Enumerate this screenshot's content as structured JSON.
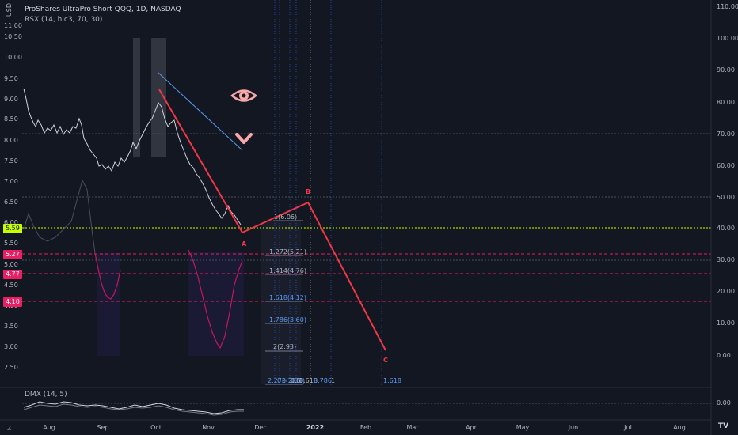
{
  "header": {
    "title": "ProShares UltraPro Short QQQ, 1D, NASDAQ",
    "indicator_rsx": "RSX (14, hlc3, 70, 30)",
    "indicator_dmx": "DMX (14, 5)"
  },
  "left_axis": {
    "unit": "USD",
    "top_label": "11.00",
    "ticks": [
      "10.50",
      "10.00",
      "9.50",
      "9.00",
      "8.50",
      "8.00",
      "7.50",
      "7.00",
      "6.50",
      "6.00",
      "5.50",
      "5.00",
      "4.50",
      "4.00",
      "3.50",
      "3.00",
      "2.50"
    ]
  },
  "right_axis": {
    "ticks": [
      "110.00",
      "100.00",
      "90.00",
      "80.00",
      "70.00",
      "60.00",
      "50.00",
      "40.00",
      "30.00",
      "20.00",
      "10.00",
      "0.00"
    ],
    "dmx_tick": "0.00"
  },
  "x_axis": {
    "labels": [
      "Aug",
      "Sep",
      "Oct",
      "Nov",
      "Dec",
      "2022",
      "Feb",
      "Mar",
      "Apr",
      "May",
      "Jun",
      "Jul",
      "Aug"
    ]
  },
  "price_badges": {
    "current": {
      "text": "5.59",
      "color": "#c6ff00"
    },
    "b1": {
      "text": "5.27",
      "color": "#e91e63"
    },
    "b2": {
      "text": "4.77",
      "color": "#e91e63"
    },
    "b3": {
      "text": "4.10",
      "color": "#e91e63"
    }
  },
  "fib_levels": {
    "l1": "1(6.06)",
    "l2": "1.272(5.21)",
    "l3": "1.414(4.76)",
    "l4": "1.618(4.12)",
    "l5": "1.786(3.60)",
    "l6": "2(2.93)",
    "l7": "2.272(2.08)"
  },
  "fib_time": {
    "t1": "0",
    "t2": "0.386",
    "t3": "0.5",
    "t4": "0.618",
    "t5": "0.786",
    "t6": "1",
    "t7": "1.618"
  },
  "waves": {
    "a": "A",
    "b": "B",
    "c": "C"
  },
  "footer": {
    "tz": "Z",
    "logo": "TV"
  },
  "colors": {
    "background": "#131722",
    "wave_line": "#f23645",
    "current_price": "#c6ff00",
    "fib_pink": "#e91e63",
    "rsx_line": "#e06aa8",
    "eye_icon": "#f7a8a8"
  },
  "icons": [
    "eye-icon",
    "chevron-down-icon",
    "settings-icon"
  ]
}
